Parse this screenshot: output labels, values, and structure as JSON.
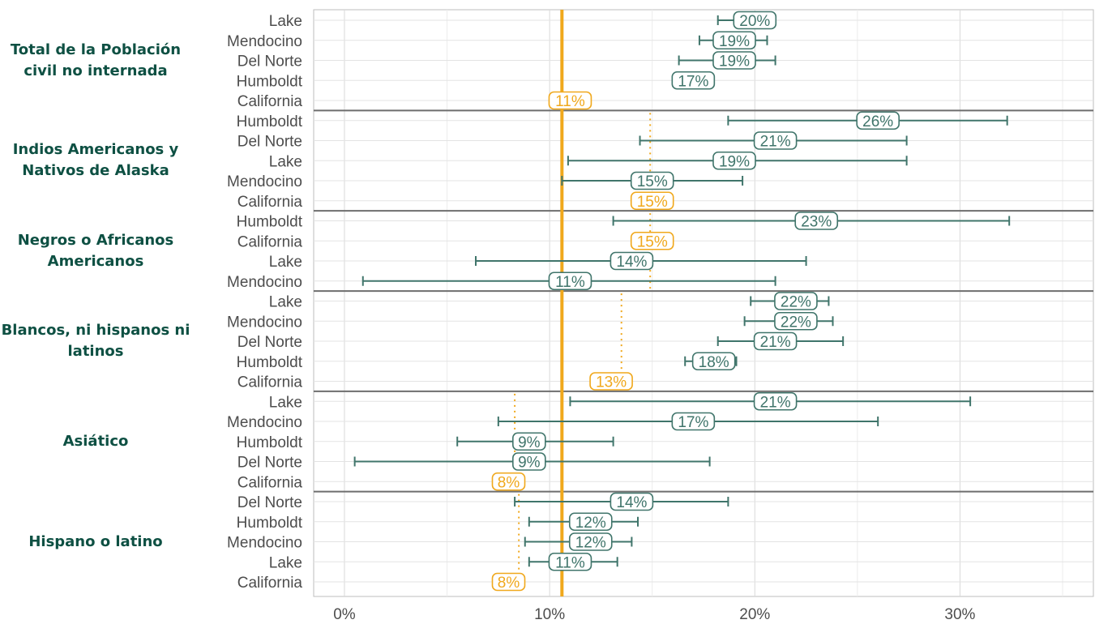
{
  "colors": {
    "teal": "#40756b",
    "orange": "#f0a81c",
    "overall_line": "#f0a81c",
    "group_label": "#0e5043",
    "axis_text": "#4d4d4d"
  },
  "chart_data": {
    "type": "dot-errorbar",
    "title": "",
    "xlabel": "",
    "ylabel": "",
    "xlim": [
      -1.5,
      36.5
    ],
    "x_ticks": [
      0,
      10,
      20,
      30
    ],
    "x_tick_labels": [
      "0%",
      "10%",
      "20%",
      "30%"
    ],
    "overall_reference": 10.6,
    "grid": true,
    "groups": [
      {
        "label": "Total de la Población civil no internada",
        "ref": null,
        "rows": [
          {
            "county": "Lake",
            "value": 20,
            "lo": 18.2,
            "hi": 21.0,
            "label": "20%"
          },
          {
            "county": "Mendocino",
            "value": 19,
            "lo": 17.3,
            "hi": 20.6,
            "label": "19%"
          },
          {
            "county": "Del Norte",
            "value": 19,
            "lo": 16.3,
            "hi": 21.0,
            "label": "19%"
          },
          {
            "county": "Humboldt",
            "value": 17,
            "lo": null,
            "hi": null,
            "label": "17%"
          },
          {
            "county": "California",
            "value": 11,
            "lo": null,
            "hi": null,
            "label": "11%",
            "state": true
          }
        ]
      },
      {
        "label": "Indios Americanos y Nativos de Alaska",
        "ref": 14.9,
        "rows": [
          {
            "county": "Humboldt",
            "value": 26,
            "lo": 18.7,
            "hi": 32.3,
            "label": "26%"
          },
          {
            "county": "Del Norte",
            "value": 21,
            "lo": 14.4,
            "hi": 27.4,
            "label": "21%"
          },
          {
            "county": "Lake",
            "value": 19,
            "lo": 10.9,
            "hi": 27.4,
            "label": "19%"
          },
          {
            "county": "Mendocino",
            "value": 15,
            "lo": 10.6,
            "hi": 19.4,
            "label": "15%"
          },
          {
            "county": "California",
            "value": 15,
            "lo": null,
            "hi": null,
            "label": "15%",
            "state": true
          }
        ]
      },
      {
        "label": "Negros o Africanos Americanos",
        "ref": 14.9,
        "rows": [
          {
            "county": "Humboldt",
            "value": 23,
            "lo": 13.1,
            "hi": 32.4,
            "label": "23%"
          },
          {
            "county": "California",
            "value": 15,
            "lo": null,
            "hi": null,
            "label": "15%",
            "state": true
          },
          {
            "county": "Lake",
            "value": 14,
            "lo": 6.4,
            "hi": 22.5,
            "label": "14%"
          },
          {
            "county": "Mendocino",
            "value": 11,
            "lo": 0.9,
            "hi": 21.0,
            "label": "11%"
          }
        ]
      },
      {
        "label": "Blancos, ni hispanos ni latinos",
        "ref": 13.5,
        "rows": [
          {
            "county": "Lake",
            "value": 22,
            "lo": 19.8,
            "hi": 23.6,
            "label": "22%"
          },
          {
            "county": "Mendocino",
            "value": 22,
            "lo": 19.5,
            "hi": 23.8,
            "label": "22%"
          },
          {
            "county": "Del Norte",
            "value": 21,
            "lo": 18.2,
            "hi": 24.3,
            "label": "21%"
          },
          {
            "county": "Humboldt",
            "value": 18,
            "lo": 16.6,
            "hi": 19.1,
            "label": "18%"
          },
          {
            "county": "California",
            "value": 13,
            "lo": null,
            "hi": null,
            "label": "13%",
            "state": true
          }
        ]
      },
      {
        "label": "Asiático",
        "ref": 8.3,
        "rows": [
          {
            "county": "Lake",
            "value": 21,
            "lo": 11.0,
            "hi": 30.5,
            "label": "21%"
          },
          {
            "county": "Mendocino",
            "value": 17,
            "lo": 7.5,
            "hi": 26.0,
            "label": "17%"
          },
          {
            "county": "Humboldt",
            "value": 9,
            "lo": 5.5,
            "hi": 13.1,
            "label": "9%"
          },
          {
            "county": "Del Norte",
            "value": 9,
            "lo": 0.5,
            "hi": 17.8,
            "label": "9%"
          },
          {
            "county": "California",
            "value": 8,
            "lo": null,
            "hi": null,
            "label": "8%",
            "state": true
          }
        ]
      },
      {
        "label": "Hispano o latino",
        "ref": 8.5,
        "rows": [
          {
            "county": "Del Norte",
            "value": 14,
            "lo": 8.3,
            "hi": 18.7,
            "label": "14%"
          },
          {
            "county": "Humboldt",
            "value": 12,
            "lo": 9.0,
            "hi": 14.3,
            "label": "12%"
          },
          {
            "county": "Mendocino",
            "value": 12,
            "lo": 8.8,
            "hi": 14.0,
            "label": "12%"
          },
          {
            "county": "Lake",
            "value": 11,
            "lo": 9.0,
            "hi": 13.3,
            "label": "11%"
          },
          {
            "county": "California",
            "value": 8,
            "lo": null,
            "hi": null,
            "label": "8%",
            "state": true
          }
        ]
      }
    ]
  }
}
